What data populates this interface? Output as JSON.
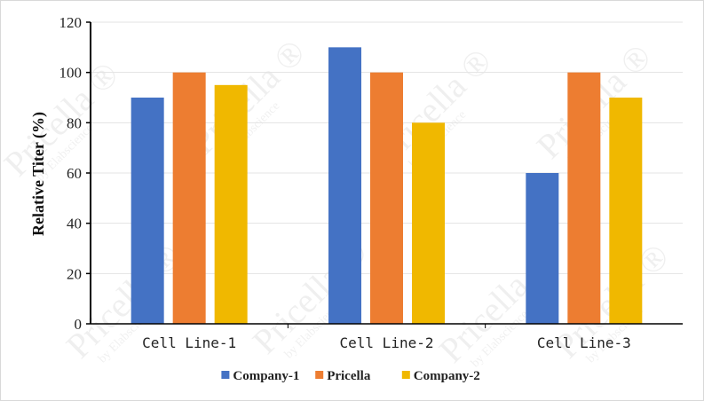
{
  "chart_data": {
    "type": "bar",
    "title": "",
    "xlabel": "",
    "ylabel": "Relative Titer (%)",
    "ylim": [
      0,
      120
    ],
    "yticks": [
      0,
      20,
      40,
      60,
      80,
      100,
      120
    ],
    "grid": true,
    "legend_position": "bottom",
    "categories": [
      "Cell Line-1",
      "Cell Line-2",
      "Cell Line-3"
    ],
    "series": [
      {
        "name": "Company-1",
        "color": "#4472c4",
        "values": [
          90,
          110,
          60
        ]
      },
      {
        "name": "Pricella",
        "color": "#ed7d31",
        "values": [
          100,
          100,
          100
        ]
      },
      {
        "name": "Company-2",
        "color": "#f0b800",
        "values": [
          95,
          80,
          90
        ]
      }
    ]
  },
  "watermark": {
    "brand": "Pricella ®",
    "sub": "by Elabscience"
  }
}
